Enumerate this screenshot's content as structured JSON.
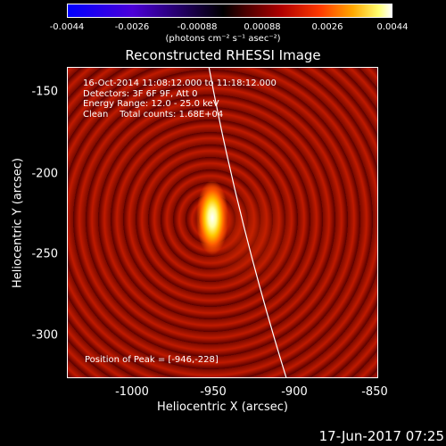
{
  "colorbar": {
    "ticks": [
      "-0.0044",
      "-0.0026",
      "-0.00088",
      "0.00088",
      "0.0026",
      "0.0044"
    ],
    "unit": "(photons cm⁻² s⁻¹ asec⁻²)"
  },
  "title": "Reconstructed RHESSI Image",
  "info": {
    "time": "16-Oct-2014 11:08:12.000 to 11:18:12.000",
    "detectors": "Detectors: 3F 6F 9F, Att 0",
    "energy": "Energy Range: 12.0 - 25.0 keV",
    "clean": "Clean    Total counts: 1.68E+04"
  },
  "peak": "Position of Peak = [-946,-228]",
  "axes": {
    "x_label": "Heliocentric X (arcsec)",
    "y_label": "Heliocentric Y (arcsec)",
    "x_ticks": [
      "-1000",
      "-950",
      "-900",
      "-850"
    ],
    "y_ticks": [
      "-150",
      "-200",
      "-250",
      "-300"
    ]
  },
  "datestamp": "17-Jun-2017 07:25",
  "colors": {
    "background": "#000000",
    "limb_line": "#ffffff"
  }
}
